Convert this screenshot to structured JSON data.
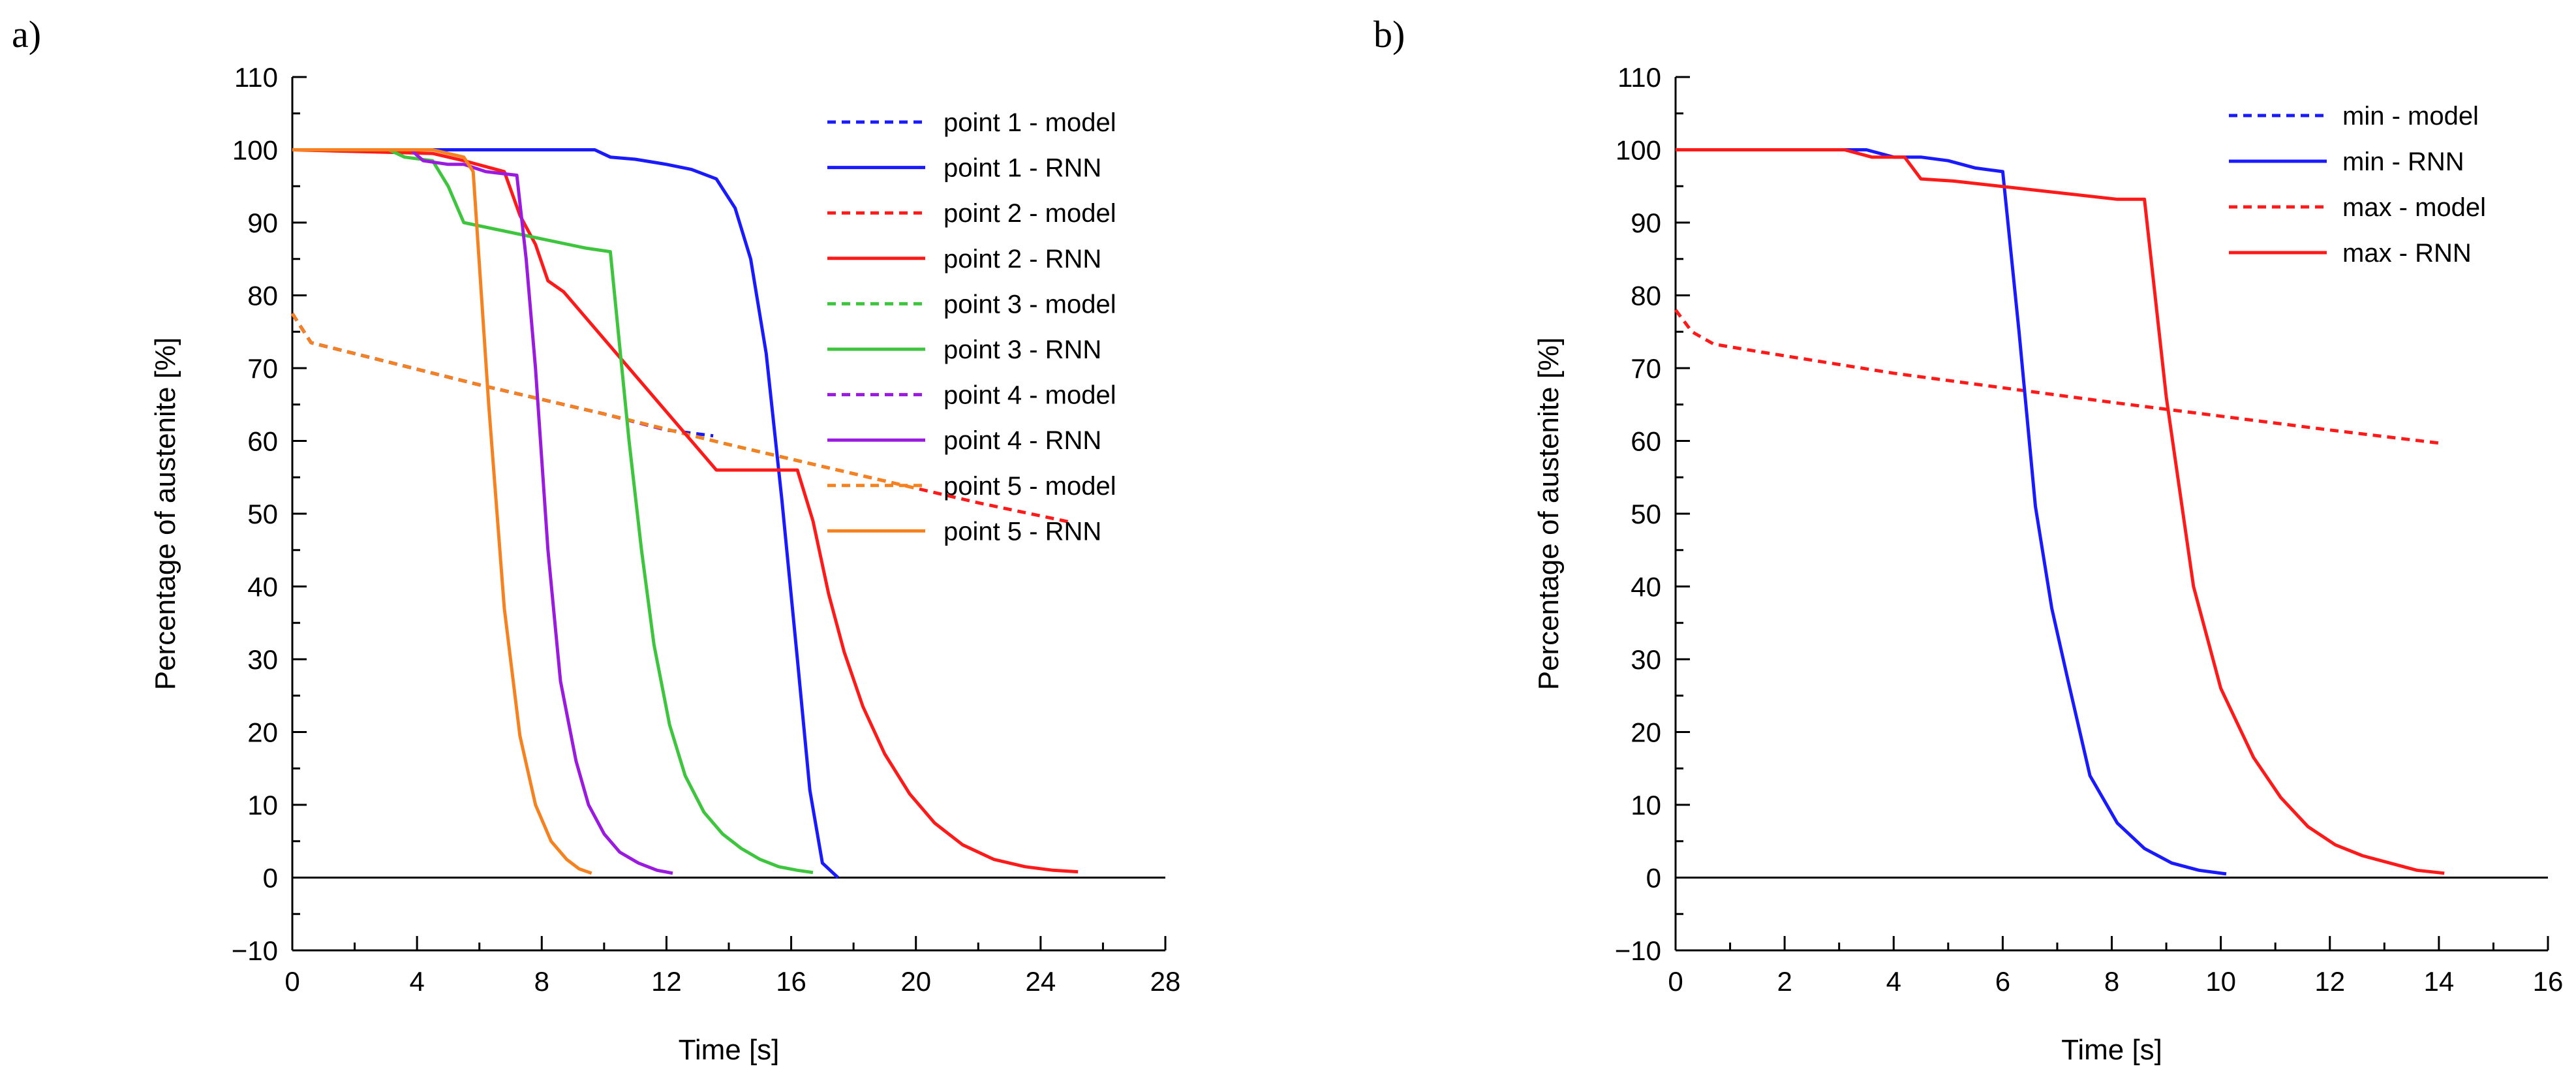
{
  "chart_data": [
    {
      "panel": "a)",
      "type": "line",
      "xlabel": "Time [s]",
      "ylabel": "Percentage of austenite [%]",
      "xlim": [
        0,
        28
      ],
      "ylim": [
        -10,
        110
      ],
      "xticks": [
        0,
        4,
        8,
        12,
        16,
        20,
        24,
        28
      ],
      "yticks": [
        -10,
        0,
        10,
        20,
        30,
        40,
        50,
        60,
        70,
        80,
        90,
        100,
        110
      ],
      "legend_position": "top-right",
      "series": [
        {
          "name": "point 1 - model",
          "color": "#1a1aff",
          "dash": "dashed",
          "x": [
            0,
            0.6,
            2,
            6,
            10,
            12,
            13.5
          ],
          "y": [
            77.5,
            73.5,
            72,
            67.7,
            63.7,
            61.5,
            60.7
          ]
        },
        {
          "name": "point 1 - RNN",
          "color": "#1a1aff",
          "dash": "solid",
          "x": [
            0,
            9.7,
            10.2,
            11,
            12,
            12.8,
            13.6,
            14.2,
            14.7,
            15.2,
            15.7,
            16.2,
            16.6,
            17,
            17.5
          ],
          "y": [
            100,
            100,
            99,
            98.7,
            98,
            97.3,
            96,
            92,
            85,
            72,
            52,
            30,
            12,
            2,
            0
          ]
        },
        {
          "name": "point 2 - model",
          "color": "#ff1a1a",
          "dash": "dashed",
          "x": [
            0,
            0.6,
            2,
            6,
            10,
            14,
            18,
            22,
            25
          ],
          "y": [
            77.5,
            73.5,
            72,
            67.7,
            63.7,
            59.5,
            55.5,
            51.5,
            48.8
          ]
        },
        {
          "name": "point 2 - RNN",
          "color": "#ff1a1a",
          "dash": "solid",
          "x": [
            0,
            4.5,
            5.5,
            6.8,
            7.3,
            7.8,
            8.2,
            8.7,
            13.6,
            16.2,
            16.7,
            17.2,
            17.7,
            18.3,
            19,
            19.8,
            20.6,
            21.5,
            22.5,
            23.5,
            24.4,
            25.2
          ],
          "y": [
            100,
            99.5,
            98.5,
            97,
            91,
            87,
            82,
            80.5,
            56,
            56,
            49,
            39,
            31,
            23.5,
            17,
            11.5,
            7.5,
            4.5,
            2.5,
            1.5,
            1,
            0.8
          ]
        },
        {
          "name": "point 3 - model",
          "color": "#3ec53e",
          "dash": "dashed",
          "x": [
            0,
            0.6,
            2,
            6,
            10,
            14,
            17
          ],
          "y": [
            77.5,
            73.5,
            72,
            67.7,
            63.7,
            59.5,
            56.5
          ]
        },
        {
          "name": "point 3 - RNN",
          "color": "#3ec53e",
          "dash": "solid",
          "x": [
            0,
            3.1,
            3.6,
            4.5,
            5,
            5.5,
            9.4,
            10.2,
            10.8,
            11.2,
            11.6,
            12.1,
            12.6,
            13.2,
            13.8,
            14.4,
            15,
            15.6,
            16.2,
            16.7
          ],
          "y": [
            100,
            100,
            99,
            98.5,
            95,
            90,
            86.5,
            86,
            60,
            45,
            32,
            21,
            14,
            9,
            6,
            4,
            2.5,
            1.5,
            1,
            0.7
          ]
        },
        {
          "name": "point 4 - model",
          "color": "#9a1ae0",
          "dash": "dashed",
          "x": [
            0,
            0.6,
            2,
            6,
            10,
            12
          ],
          "y": [
            77.5,
            73.5,
            72,
            67.7,
            63.7,
            61.5
          ]
        },
        {
          "name": "point 4 - RNN",
          "color": "#9a1ae0",
          "dash": "solid",
          "x": [
            0,
            3.8,
            4.2,
            5,
            5.5,
            6.2,
            7.2,
            7.5,
            7.8,
            8.2,
            8.6,
            9.1,
            9.5,
            10,
            10.5,
            11.1,
            11.7,
            12.2
          ],
          "y": [
            100,
            100,
            98.5,
            98,
            98,
            97,
            96.5,
            85,
            70,
            45,
            27,
            16,
            10,
            6,
            3.5,
            2,
            1,
            0.6
          ]
        },
        {
          "name": "point 5 - model",
          "color": "#f5821f",
          "dash": "dashed",
          "x": [
            0,
            0.6,
            2,
            6,
            10,
            14,
            18,
            20
          ],
          "y": [
            77.5,
            73.5,
            72,
            67.7,
            63.7,
            59.5,
            55.5,
            53.5
          ]
        },
        {
          "name": "point 5 - RNN",
          "color": "#f5821f",
          "dash": "solid",
          "x": [
            0,
            4.5,
            5.5,
            5.8,
            6.3,
            6.8,
            7.3,
            7.8,
            8.3,
            8.8,
            9.2,
            9.6
          ],
          "y": [
            100,
            100,
            99,
            97,
            65,
            37,
            19.5,
            10,
            5,
            2.5,
            1.2,
            0.6
          ]
        }
      ]
    },
    {
      "panel": "b)",
      "type": "line",
      "xlabel": "Time [s]",
      "ylabel": "Percentage of austenite [%]",
      "xlim": [
        0,
        16
      ],
      "ylim": [
        -10,
        110
      ],
      "xticks": [
        0,
        2,
        4,
        6,
        8,
        10,
        12,
        14,
        16
      ],
      "yticks": [
        -10,
        0,
        10,
        20,
        30,
        40,
        50,
        60,
        70,
        80,
        90,
        100,
        110
      ],
      "legend_position": "top-right",
      "series": [
        {
          "name": "min - model",
          "color": "#1a1aff",
          "dash": "dashed",
          "x": [],
          "y": []
        },
        {
          "name": "min - RNN",
          "color": "#1a1aff",
          "dash": "solid",
          "x": [
            0,
            3,
            3.5,
            4,
            4.5,
            5,
            5.5,
            6,
            6.3,
            6.6,
            6.9,
            7.2,
            7.6,
            8.1,
            8.6,
            9.1,
            9.6,
            10.1
          ],
          "y": [
            100,
            100,
            100,
            99,
            99,
            98.5,
            97.5,
            97,
            75,
            51,
            37,
            27,
            14,
            7.5,
            4,
            2,
            1,
            0.5
          ]
        },
        {
          "name": "max - model",
          "color": "#ff1a1a",
          "dash": "dashed",
          "x": [
            0,
            0.3,
            0.7,
            1.5,
            4,
            8,
            12,
            14
          ],
          "y": [
            78,
            75,
            73.3,
            72.3,
            69.3,
            65.3,
            61.5,
            59.7
          ]
        },
        {
          "name": "max - RNN",
          "color": "#ff1a1a",
          "dash": "solid",
          "x": [
            0,
            3.1,
            3.6,
            4.2,
            4.5,
            5.1,
            8.1,
            8.6,
            9,
            9.5,
            10,
            10.6,
            11.1,
            11.6,
            12.1,
            12.6,
            13.1,
            13.6,
            14.1
          ],
          "y": [
            100,
            100,
            99,
            99,
            96,
            95.7,
            93.2,
            93.2,
            66,
            40,
            26,
            16.5,
            11,
            7,
            4.5,
            3,
            2,
            1,
            0.6
          ]
        }
      ]
    }
  ]
}
